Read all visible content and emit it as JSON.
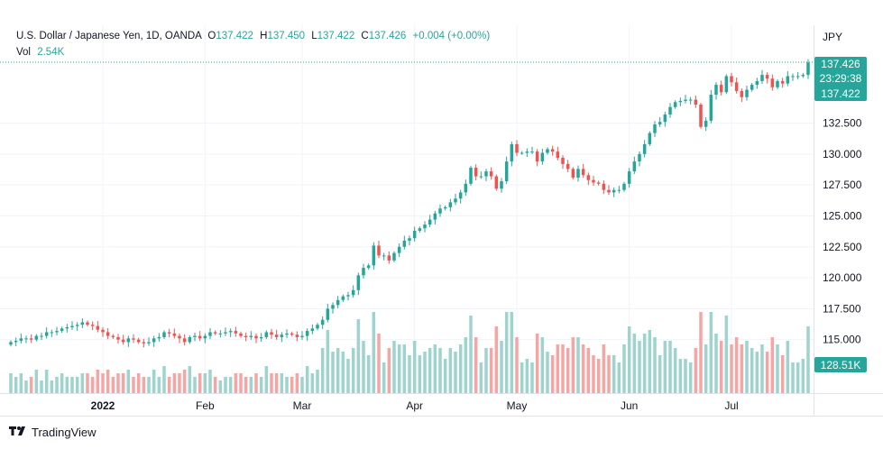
{
  "header": {
    "symbol": "U.S. Dollar / Japanese Yen, 1D, OANDA",
    "o_label": "O",
    "o_value": "137.422",
    "h_label": "H",
    "h_value": "137.450",
    "l_label": "L",
    "l_value": "137.422",
    "c_label": "C",
    "c_value": "137.426",
    "change": "+0.004 (+0.00%)",
    "vol_label": "Vol",
    "vol_value": "2.54K"
  },
  "price_axis": {
    "currency": "JPY",
    "ticks": [
      "132.500",
      "130.000",
      "127.500",
      "125.000",
      "122.500",
      "120.000",
      "117.500",
      "115.000"
    ],
    "current_price": "137.426",
    "countdown": "23:29:38",
    "open_price": "137.422",
    "volume_badge": "128.51K"
  },
  "time_axis": {
    "ticks": [
      "2022",
      "Feb",
      "Mar",
      "Apr",
      "May",
      "Jun",
      "Jul"
    ]
  },
  "branding": {
    "text": "TradingView"
  },
  "colors": {
    "up": "#26a69a",
    "down": "#ef5350",
    "up_vol": "#9fd3cd",
    "down_vol": "#f5a6a4"
  },
  "chart_data": {
    "type": "candlestick",
    "symbol": "USDJPY",
    "interval": "1D",
    "ylim": [
      113.0,
      138.5
    ],
    "y_ticks": [
      115.0,
      117.5,
      120.0,
      122.5,
      125.0,
      127.5,
      130.0,
      132.5
    ],
    "x_ticks": [
      "2022",
      "Feb",
      "Mar",
      "Apr",
      "May",
      "Jun",
      "Jul"
    ],
    "current_price": 137.426,
    "close": [
      114.8,
      114.9,
      115.1,
      115.1,
      115.0,
      115.3,
      115.3,
      115.6,
      115.6,
      115.7,
      115.9,
      116.0,
      116.1,
      116.2,
      116.4,
      116.2,
      116.1,
      115.8,
      115.6,
      115.3,
      115.2,
      115.0,
      114.8,
      115.1,
      115.0,
      114.8,
      114.7,
      114.8,
      115.1,
      115.2,
      115.6,
      115.5,
      115.3,
      115.1,
      114.8,
      115.2,
      115.3,
      115.1,
      115.3,
      115.6,
      115.5,
      115.5,
      115.6,
      115.7,
      115.5,
      115.3,
      115.2,
      115.3,
      115.1,
      115.2,
      115.6,
      115.4,
      115.2,
      115.4,
      115.5,
      115.4,
      115.2,
      115.3,
      115.7,
      115.9,
      116.2,
      116.6,
      117.5,
      117.8,
      118.2,
      118.5,
      118.6,
      119.0,
      120.2,
      120.8,
      121.0,
      122.6,
      121.8,
      121.8,
      121.4,
      122.0,
      122.5,
      123.0,
      123.2,
      123.8,
      124.0,
      124.3,
      124.7,
      125.2,
      125.6,
      125.7,
      126.1,
      126.4,
      126.9,
      127.6,
      128.9,
      128.2,
      128.2,
      128.6,
      128.2,
      127.2,
      127.8,
      129.4,
      130.8,
      130.1,
      130.1,
      130.2,
      130.2,
      129.4,
      130.1,
      130.4,
      130.2,
      129.7,
      129.2,
      128.8,
      128.1,
      128.8,
      128.3,
      127.9,
      127.7,
      127.6,
      127.1,
      126.9,
      127.1,
      127.1,
      127.6,
      128.6,
      129.4,
      130.0,
      130.8,
      131.7,
      132.4,
      132.6,
      133.2,
      133.8,
      134.2,
      134.3,
      134.4,
      134.4,
      134.0,
      132.2,
      132.7,
      134.8,
      135.6,
      135.0,
      136.3,
      135.8,
      135.1,
      134.6,
      135.2,
      135.6,
      135.9,
      136.4,
      136.1,
      135.4,
      135.9,
      135.7,
      136.3,
      136.3,
      136.3,
      136.4,
      137.4
    ]
  }
}
